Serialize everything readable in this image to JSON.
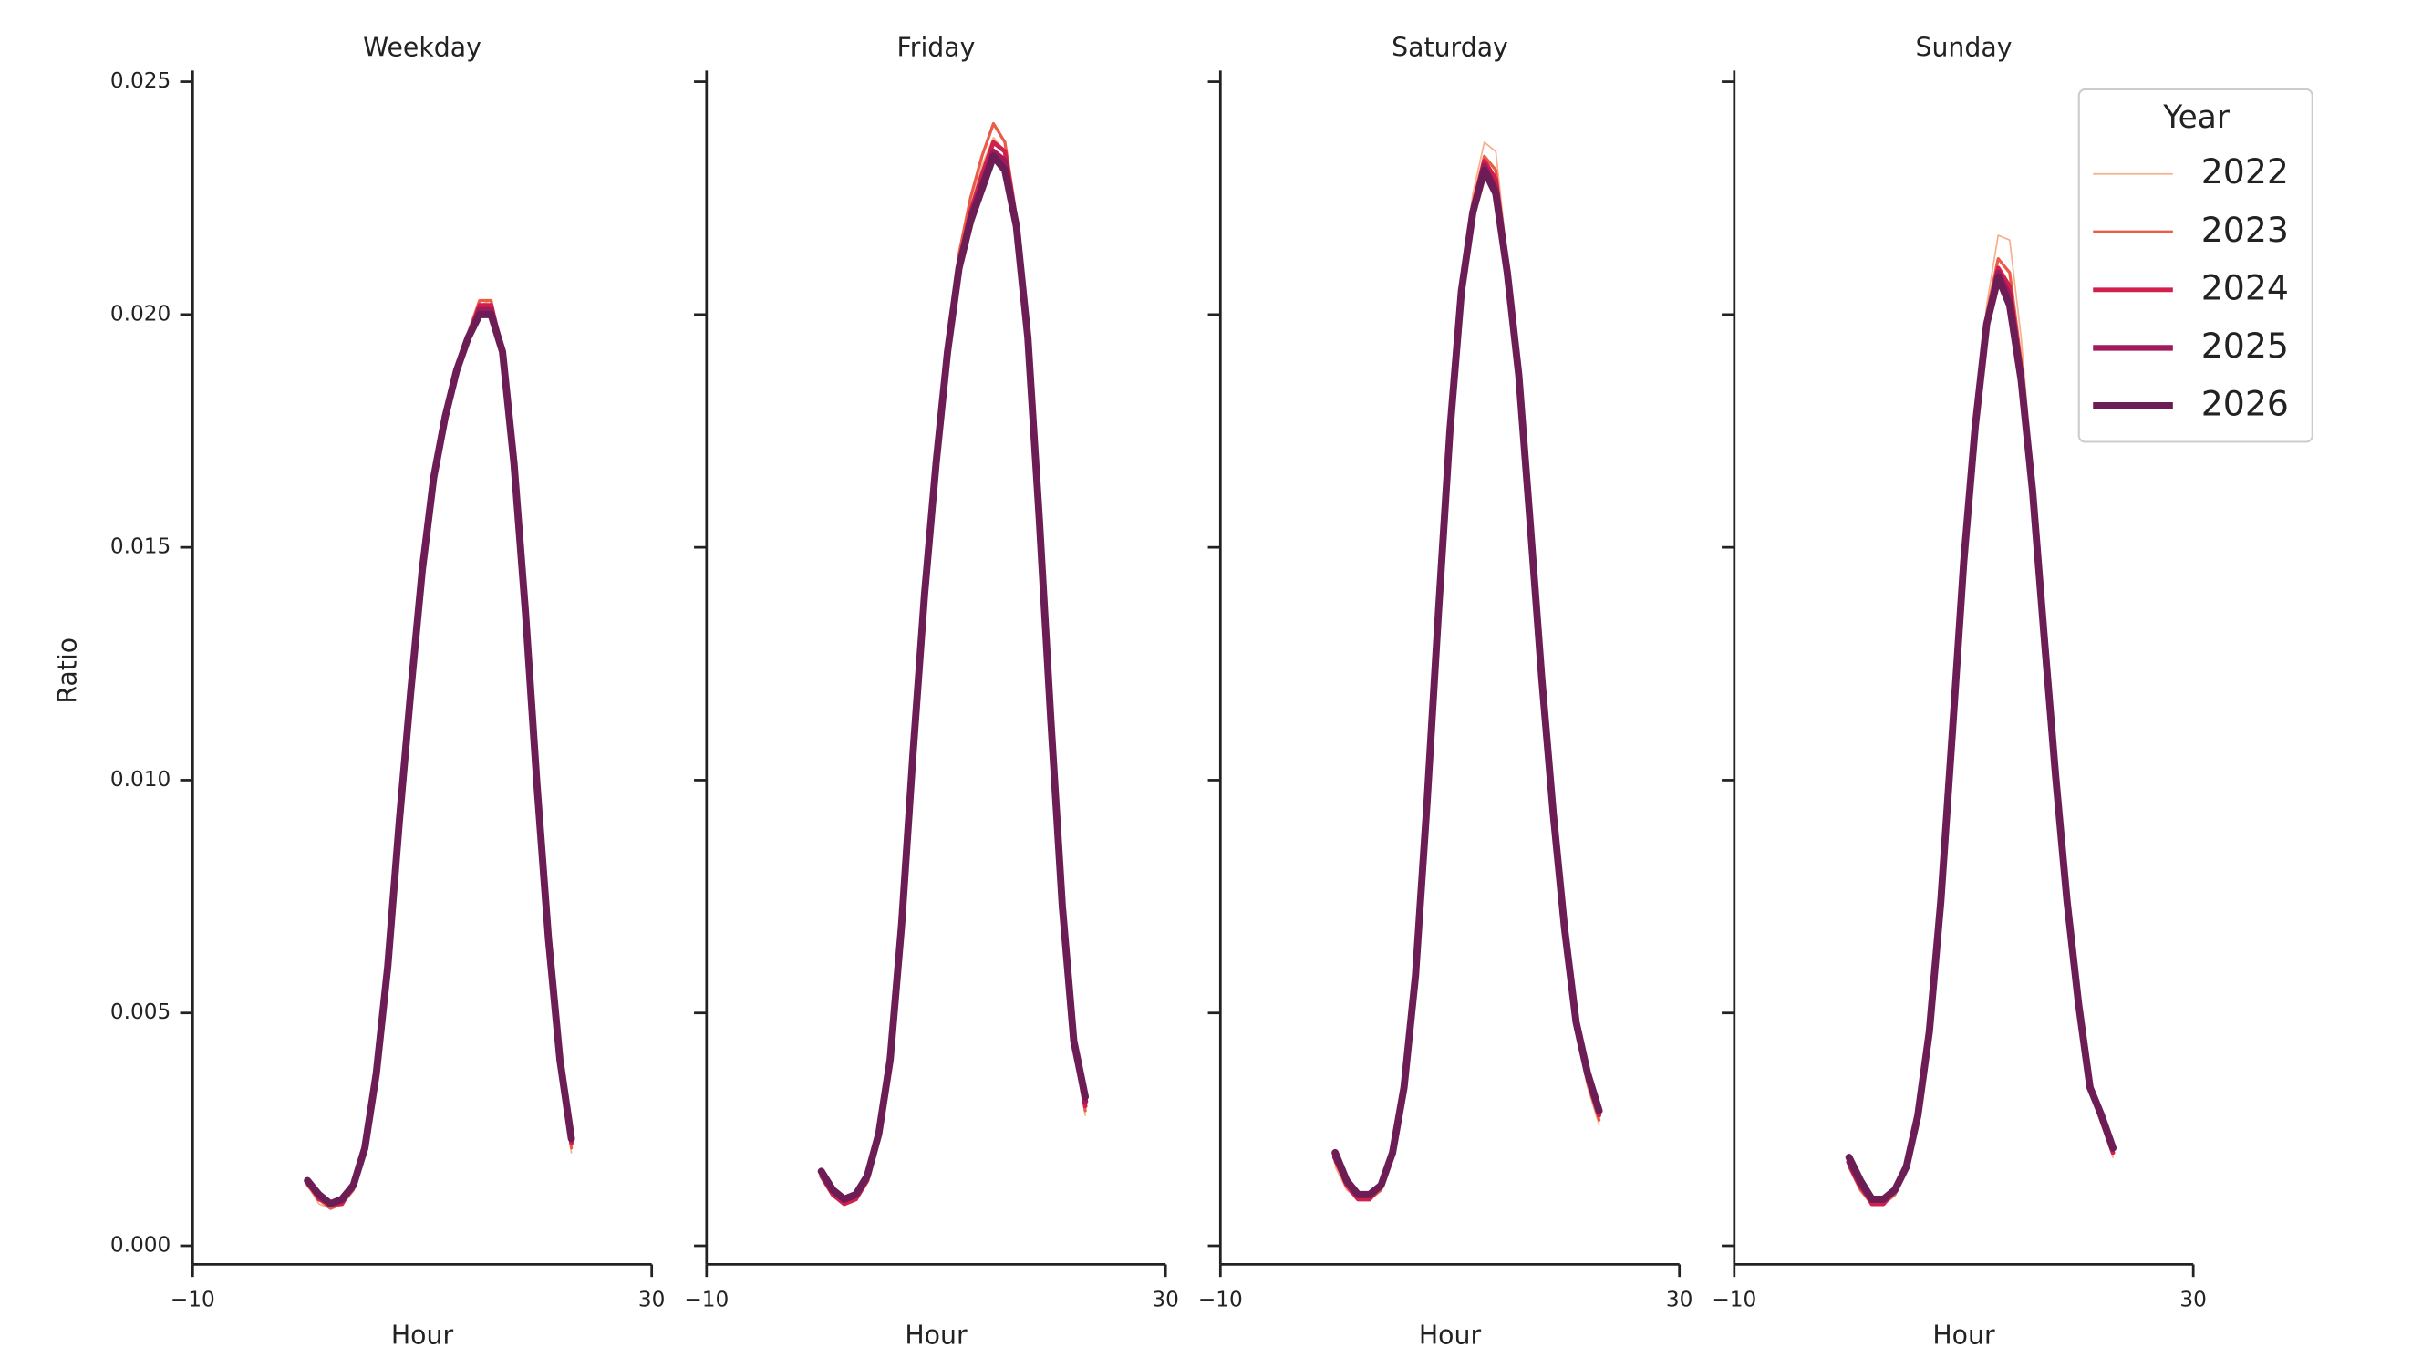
{
  "chart_data": [
    {
      "type": "line",
      "title": "Weekday",
      "xlabel": "Hour",
      "ylabel": "Ratio",
      "xlim": [
        -10,
        30
      ],
      "xticks": [
        {
          "value": -10,
          "label": "−10"
        },
        30
      ],
      "ylim": [
        -0.0004,
        0.02524
      ],
      "yticks": [
        {
          "value": 0,
          "label": "0.000"
        },
        {
          "value": 0.005,
          "label": "0.005"
        },
        {
          "value": 0.01,
          "label": "0.010"
        },
        {
          "value": 0.015,
          "label": "0.015"
        },
        {
          "value": 0.02,
          "label": "0.020"
        },
        {
          "value": 0.025,
          "label": "0.025"
        }
      ],
      "x": [
        0,
        1,
        2,
        3,
        4,
        5,
        6,
        7,
        8,
        9,
        10,
        11,
        12,
        13,
        14,
        15,
        16,
        17,
        18,
        19,
        20,
        21,
        22,
        23
      ],
      "series": [
        {
          "name": "2022",
          "color": "#f5b08e",
          "values": [
            0.0013,
            0.0009,
            0.0008,
            0.0009,
            0.0012,
            0.0021,
            0.0037,
            0.006,
            0.0091,
            0.0119,
            0.0145,
            0.0165,
            0.0178,
            0.0188,
            0.0196,
            0.0202,
            0.0203,
            0.0192,
            0.0168,
            0.0136,
            0.0099,
            0.0065,
            0.0039,
            0.002
          ]
        },
        {
          "name": "2023",
          "color": "#ea5c45",
          "values": [
            0.0013,
            0.001,
            0.0008,
            0.0009,
            0.0012,
            0.0021,
            0.0037,
            0.006,
            0.0091,
            0.0119,
            0.0145,
            0.0165,
            0.0178,
            0.0188,
            0.0196,
            0.0203,
            0.0203,
            0.0192,
            0.0168,
            0.0136,
            0.0099,
            0.0065,
            0.0039,
            0.0021
          ]
        },
        {
          "name": "2024",
          "color": "#d2204c",
          "values": [
            0.0014,
            0.001,
            0.0009,
            0.0009,
            0.0013,
            0.0021,
            0.0037,
            0.006,
            0.0091,
            0.0119,
            0.0145,
            0.0165,
            0.0178,
            0.0188,
            0.0195,
            0.0202,
            0.0202,
            0.0192,
            0.0168,
            0.0136,
            0.0099,
            0.0066,
            0.004,
            0.0022
          ]
        },
        {
          "name": "2025",
          "color": "#a11a5b",
          "values": [
            0.0014,
            0.0011,
            0.0009,
            0.001,
            0.0013,
            0.0021,
            0.0037,
            0.006,
            0.0091,
            0.0119,
            0.0145,
            0.0165,
            0.0178,
            0.0188,
            0.0195,
            0.0201,
            0.0201,
            0.0192,
            0.0168,
            0.0136,
            0.0099,
            0.0066,
            0.004,
            0.0023
          ]
        },
        {
          "name": "2026",
          "color": "#6c1d55",
          "values": [
            0.0014,
            0.0011,
            0.0009,
            0.001,
            0.0013,
            0.0021,
            0.0037,
            0.006,
            0.0091,
            0.0119,
            0.0145,
            0.0165,
            0.0178,
            0.0188,
            0.0195,
            0.02,
            0.02,
            0.0192,
            0.0168,
            0.0136,
            0.0099,
            0.0066,
            0.004,
            0.0023
          ]
        }
      ]
    },
    {
      "type": "line",
      "title": "Friday",
      "xlabel": "Hour",
      "xlim": [
        -10,
        30
      ],
      "xticks": [
        {
          "value": -10,
          "label": "−10"
        },
        30
      ],
      "ylim": [
        -0.0004,
        0.02524
      ],
      "yticks": [
        0,
        0.005,
        0.01,
        0.015,
        0.02,
        0.025
      ],
      "x": [
        0,
        1,
        2,
        3,
        4,
        5,
        6,
        7,
        8,
        9,
        10,
        11,
        12,
        13,
        14,
        15,
        16,
        17,
        18,
        19,
        20,
        21,
        22,
        23
      ],
      "series": [
        {
          "name": "2022",
          "color": "#f5b08e",
          "values": [
            0.0015,
            0.0011,
            0.0009,
            0.001,
            0.0014,
            0.0024,
            0.004,
            0.0069,
            0.0106,
            0.014,
            0.0168,
            0.0193,
            0.0212,
            0.0223,
            0.0232,
            0.0238,
            0.0235,
            0.0219,
            0.0195,
            0.0156,
            0.0113,
            0.0072,
            0.0043,
            0.0028
          ]
        },
        {
          "name": "2023",
          "color": "#ea5c45",
          "values": [
            0.0015,
            0.0011,
            0.0009,
            0.001,
            0.0014,
            0.0024,
            0.004,
            0.0069,
            0.0106,
            0.014,
            0.0169,
            0.0194,
            0.0213,
            0.0225,
            0.0234,
            0.0241,
            0.0237,
            0.0221,
            0.0195,
            0.0156,
            0.0113,
            0.0072,
            0.0043,
            0.0029
          ]
        },
        {
          "name": "2024",
          "color": "#d2204c",
          "values": [
            0.0015,
            0.0011,
            0.0009,
            0.001,
            0.0014,
            0.0024,
            0.004,
            0.0069,
            0.0106,
            0.014,
            0.0168,
            0.0193,
            0.0211,
            0.0222,
            0.023,
            0.0237,
            0.0235,
            0.022,
            0.0195,
            0.0156,
            0.0113,
            0.0073,
            0.0044,
            0.003
          ]
        },
        {
          "name": "2025",
          "color": "#a11a5b",
          "values": [
            0.0016,
            0.0012,
            0.001,
            0.0011,
            0.0015,
            0.0024,
            0.004,
            0.0069,
            0.0106,
            0.014,
            0.0168,
            0.0192,
            0.021,
            0.0221,
            0.0228,
            0.0235,
            0.0233,
            0.0219,
            0.0195,
            0.0156,
            0.0113,
            0.0073,
            0.0044,
            0.0031
          ]
        },
        {
          "name": "2026",
          "color": "#6c1d55",
          "values": [
            0.0016,
            0.0012,
            0.001,
            0.0011,
            0.0015,
            0.0024,
            0.004,
            0.0069,
            0.0106,
            0.014,
            0.0168,
            0.0192,
            0.021,
            0.022,
            0.0227,
            0.0234,
            0.0231,
            0.0219,
            0.0195,
            0.0156,
            0.0113,
            0.0073,
            0.0044,
            0.0032
          ]
        }
      ]
    },
    {
      "type": "line",
      "title": "Saturday",
      "xlabel": "Hour",
      "xlim": [
        -10,
        30
      ],
      "xticks": [
        {
          "value": -10,
          "label": "−10"
        },
        30
      ],
      "ylim": [
        -0.0004,
        0.02524
      ],
      "yticks": [
        0,
        0.005,
        0.01,
        0.015,
        0.02,
        0.025
      ],
      "x": [
        0,
        1,
        2,
        3,
        4,
        5,
        6,
        7,
        8,
        9,
        10,
        11,
        12,
        13,
        14,
        15,
        16,
        17,
        18,
        19,
        20,
        21,
        22,
        23
      ],
      "series": [
        {
          "name": "2022",
          "color": "#f5b08e",
          "values": [
            0.0017,
            0.0012,
            0.001,
            0.001,
            0.0012,
            0.002,
            0.0034,
            0.0058,
            0.0095,
            0.0136,
            0.0176,
            0.0207,
            0.0226,
            0.0237,
            0.0235,
            0.0212,
            0.0188,
            0.0155,
            0.0121,
            0.0092,
            0.0066,
            0.0046,
            0.0034,
            0.0026
          ]
        },
        {
          "name": "2023",
          "color": "#ea5c45",
          "values": [
            0.0018,
            0.0013,
            0.001,
            0.001,
            0.0012,
            0.002,
            0.0034,
            0.0058,
            0.0095,
            0.0136,
            0.0175,
            0.0206,
            0.0224,
            0.0234,
            0.0231,
            0.0211,
            0.0188,
            0.0155,
            0.0121,
            0.0092,
            0.0067,
            0.0047,
            0.0035,
            0.0027
          ]
        },
        {
          "name": "2024",
          "color": "#d2204c",
          "values": [
            0.0019,
            0.0013,
            0.001,
            0.001,
            0.0013,
            0.002,
            0.0034,
            0.0058,
            0.0095,
            0.0136,
            0.0175,
            0.0205,
            0.0223,
            0.0233,
            0.0229,
            0.021,
            0.0187,
            0.0155,
            0.0122,
            0.0093,
            0.0068,
            0.0048,
            0.0036,
            0.0028
          ]
        },
        {
          "name": "2025",
          "color": "#a11a5b",
          "values": [
            0.0019,
            0.0014,
            0.0011,
            0.0011,
            0.0013,
            0.002,
            0.0034,
            0.0058,
            0.0095,
            0.0136,
            0.0175,
            0.0205,
            0.0222,
            0.0232,
            0.0227,
            0.0209,
            0.0187,
            0.0155,
            0.0122,
            0.0093,
            0.0068,
            0.0048,
            0.0037,
            0.0029
          ]
        },
        {
          "name": "2026",
          "color": "#6c1d55",
          "values": [
            0.002,
            0.0014,
            0.0011,
            0.0011,
            0.0013,
            0.002,
            0.0034,
            0.0058,
            0.0095,
            0.0136,
            0.0175,
            0.0205,
            0.0222,
            0.0231,
            0.0226,
            0.0209,
            0.0187,
            0.0155,
            0.0122,
            0.0093,
            0.0068,
            0.0048,
            0.0037,
            0.0029
          ]
        }
      ]
    },
    {
      "type": "line",
      "title": "Sunday",
      "xlabel": "Hour",
      "xlim": [
        -10,
        30
      ],
      "xticks": [
        {
          "value": -10,
          "label": "−10"
        },
        30
      ],
      "ylim": [
        -0.0004,
        0.02524
      ],
      "yticks": [
        0,
        0.005,
        0.01,
        0.015,
        0.02,
        0.025
      ],
      "legend": "upper right",
      "legend_title": "Year",
      "x": [
        0,
        1,
        2,
        3,
        4,
        5,
        6,
        7,
        8,
        9,
        10,
        11,
        12,
        13,
        14,
        15,
        16,
        17,
        18,
        19,
        20,
        21,
        22,
        23
      ],
      "series": [
        {
          "name": "2022",
          "color": "#f5b08e",
          "values": [
            0.0017,
            0.0012,
            0.0009,
            0.0009,
            0.0011,
            0.0017,
            0.0028,
            0.0046,
            0.0074,
            0.011,
            0.0148,
            0.0178,
            0.0202,
            0.0217,
            0.0216,
            0.0195,
            0.0166,
            0.0132,
            0.0101,
            0.0073,
            0.0051,
            0.0033,
            0.0026,
            0.0019
          ]
        },
        {
          "name": "2023",
          "color": "#ea5c45",
          "values": [
            0.0017,
            0.0012,
            0.0009,
            0.0009,
            0.0011,
            0.0017,
            0.0028,
            0.0046,
            0.0074,
            0.011,
            0.0147,
            0.0177,
            0.02,
            0.0212,
            0.0209,
            0.019,
            0.0164,
            0.0132,
            0.0101,
            0.0074,
            0.0051,
            0.0034,
            0.0027,
            0.002
          ]
        },
        {
          "name": "2024",
          "color": "#d2204c",
          "values": [
            0.0018,
            0.0013,
            0.0009,
            0.0009,
            0.0012,
            0.0017,
            0.0028,
            0.0046,
            0.0074,
            0.011,
            0.0147,
            0.0177,
            0.0199,
            0.021,
            0.0206,
            0.0188,
            0.0163,
            0.0131,
            0.0101,
            0.0074,
            0.0052,
            0.0034,
            0.0027,
            0.002
          ]
        },
        {
          "name": "2025",
          "color": "#a11a5b",
          "values": [
            0.0018,
            0.0013,
            0.001,
            0.001,
            0.0012,
            0.0017,
            0.0028,
            0.0046,
            0.0074,
            0.011,
            0.0147,
            0.0176,
            0.0198,
            0.0209,
            0.0204,
            0.0187,
            0.0162,
            0.0131,
            0.0101,
            0.0074,
            0.0052,
            0.0034,
            0.0028,
            0.0021
          ]
        },
        {
          "name": "2026",
          "color": "#6c1d55",
          "values": [
            0.0019,
            0.0014,
            0.001,
            0.001,
            0.0012,
            0.0017,
            0.0028,
            0.0046,
            0.0074,
            0.011,
            0.0147,
            0.0176,
            0.0198,
            0.0208,
            0.0202,
            0.0186,
            0.0162,
            0.0131,
            0.0101,
            0.0074,
            0.0052,
            0.0034,
            0.0028,
            0.0021
          ]
        }
      ]
    }
  ]
}
